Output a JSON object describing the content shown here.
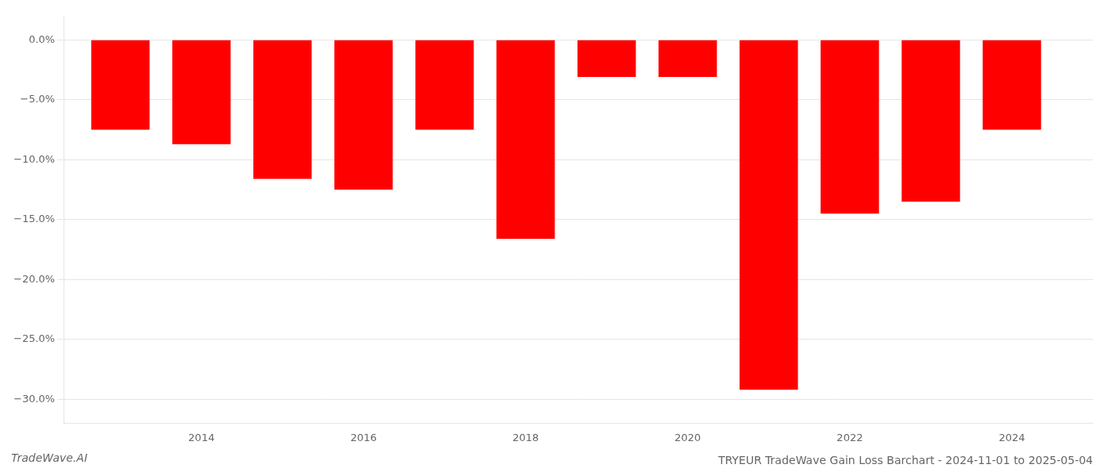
{
  "chart_data": {
    "type": "bar",
    "title": "TRYEUR TradeWave Gain Loss Barchart - 2024-11-01 to 2025-05-04",
    "annotations": [
      "TradeWave.AI"
    ],
    "x": [
      2013,
      2014,
      2015,
      2016,
      2017,
      2018,
      2019,
      2020,
      2021,
      2022,
      2023,
      2024
    ],
    "values": [
      -7.5,
      -8.7,
      -11.6,
      -12.5,
      -7.5,
      -16.6,
      -3.1,
      -3.1,
      -29.2,
      -14.5,
      -13.5,
      -7.5
    ],
    "color": "#ff0000",
    "xlim": [
      2012.3,
      2025.0
    ],
    "xticks": [
      2014,
      2016,
      2018,
      2020,
      2022,
      2024
    ],
    "ylim": [
      -32,
      2
    ],
    "yticks": [
      {
        "value": 0.0,
        "label": "0.0%"
      },
      {
        "value": -5.0,
        "label": "−5.0%"
      },
      {
        "value": -10.0,
        "label": "−10.0%"
      },
      {
        "value": -15.0,
        "label": "−15.0%"
      },
      {
        "value": -20.0,
        "label": "−20.0%"
      },
      {
        "value": -25.0,
        "label": "−25.0%"
      },
      {
        "value": -30.0,
        "label": "−30.0%"
      }
    ],
    "grid": "y"
  }
}
